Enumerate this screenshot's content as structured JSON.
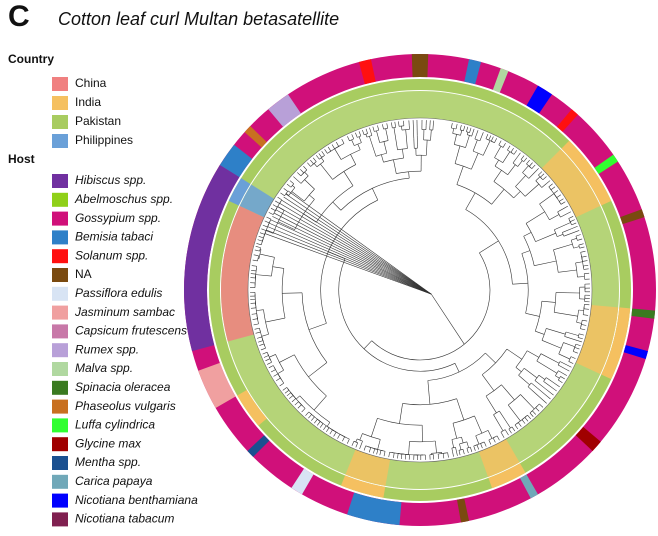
{
  "panel_label": "C",
  "title": "Cotton leaf curl Multan betasatellite",
  "country_legend": {
    "title": "Country",
    "items": [
      {
        "name": "China",
        "color": "#f08080"
      },
      {
        "name": "India",
        "color": "#f5c060"
      },
      {
        "name": "Pakistan",
        "color": "#a8cc60"
      },
      {
        "name": "Philippines",
        "color": "#6aa0d8"
      }
    ]
  },
  "host_legend": {
    "title": "Host",
    "items": [
      {
        "name": "Hibiscus spp.",
        "color": "#7030a0"
      },
      {
        "name": "Abelmoschus spp.",
        "color": "#8fd018"
      },
      {
        "name": "Gossypium spp.",
        "color": "#d0107a"
      },
      {
        "name": "Bemisia tabaci",
        "color": "#2e80c8"
      },
      {
        "name": "Solanum spp.",
        "color": "#ff1010"
      },
      {
        "name": "NA",
        "color": "#7a4a10"
      },
      {
        "name": "Passiflora edulis",
        "color": "#d8e4f4"
      },
      {
        "name": "Jasminum sambac",
        "color": "#f0a0a0"
      },
      {
        "name": "Capsicum frutescens",
        "color": "#c878a8"
      },
      {
        "name": "Rumex spp.",
        "color": "#b8a0d8"
      },
      {
        "name": "Malva spp.",
        "color": "#b0d8a0"
      },
      {
        "name": "Spinacia oleracea",
        "color": "#3a7a20"
      },
      {
        "name": "Phaseolus vulgaris",
        "color": "#c87020"
      },
      {
        "name": "Luffa cylindrica",
        "color": "#30ff30"
      },
      {
        "name": "Glycine max",
        "color": "#a00000"
      },
      {
        "name": "Mentha spp.",
        "color": "#1a5090"
      },
      {
        "name": "Carica papaya",
        "color": "#70a8b8"
      },
      {
        "name": "Nicotiana benthamiana",
        "color": "#0000ff"
      },
      {
        "name": "Nicotiana tabacum",
        "color": "#802050"
      }
    ]
  }
}
